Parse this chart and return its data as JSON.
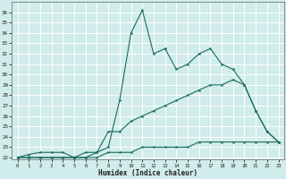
{
  "xlabel": "Humidex (Indice chaleur)",
  "ylabel": "",
  "xlim": [
    -0.5,
    23.5
  ],
  "ylim": [
    21.8,
    37.0
  ],
  "yticks": [
    22,
    23,
    24,
    25,
    26,
    27,
    28,
    29,
    30,
    31,
    32,
    33,
    34,
    35,
    36
  ],
  "xticks": [
    0,
    1,
    2,
    3,
    4,
    5,
    6,
    7,
    8,
    9,
    10,
    11,
    12,
    13,
    14,
    15,
    16,
    17,
    18,
    19,
    20,
    21,
    22,
    23
  ],
  "line_color": "#1a6b5a",
  "bg_color": "#d0eceb",
  "grid_color": "#ffffff",
  "line1_x": [
    0,
    1,
    2,
    3,
    4,
    5,
    6,
    7,
    8,
    9,
    10,
    11,
    12,
    13,
    14,
    15,
    16,
    17,
    18,
    19,
    20,
    21,
    22,
    23
  ],
  "line1_y": [
    22,
    22.3,
    22.5,
    22.5,
    22.5,
    22.0,
    22.5,
    22.5,
    23.0,
    27.5,
    34.0,
    36.2,
    32.0,
    32.5,
    30.5,
    31.0,
    32.0,
    32.5,
    31.0,
    30.5,
    29.0,
    26.5,
    24.5,
    23.5
  ],
  "line2_x": [
    0,
    1,
    2,
    3,
    4,
    5,
    6,
    7,
    8,
    9,
    10,
    11,
    12,
    13,
    14,
    15,
    16,
    17,
    18,
    19,
    20,
    21,
    22,
    23
  ],
  "line2_y": [
    22,
    22,
    22,
    22,
    22,
    22,
    22,
    22.5,
    24.5,
    24.5,
    25.5,
    26.0,
    26.5,
    27.0,
    27.5,
    28.0,
    28.5,
    29.0,
    29.0,
    29.5,
    29.0,
    26.5,
    24.5,
    23.5
  ],
  "line3_x": [
    0,
    1,
    2,
    3,
    4,
    5,
    6,
    7,
    8,
    9,
    10,
    11,
    12,
    13,
    14,
    15,
    16,
    17,
    18,
    19,
    20,
    21,
    22,
    23
  ],
  "line3_y": [
    22,
    22,
    22,
    22,
    22,
    22,
    22,
    22,
    22.5,
    22.5,
    22.5,
    23.0,
    23.0,
    23.0,
    23.0,
    23.0,
    23.5,
    23.5,
    23.5,
    23.5,
    23.5,
    23.5,
    23.5,
    23.5
  ]
}
